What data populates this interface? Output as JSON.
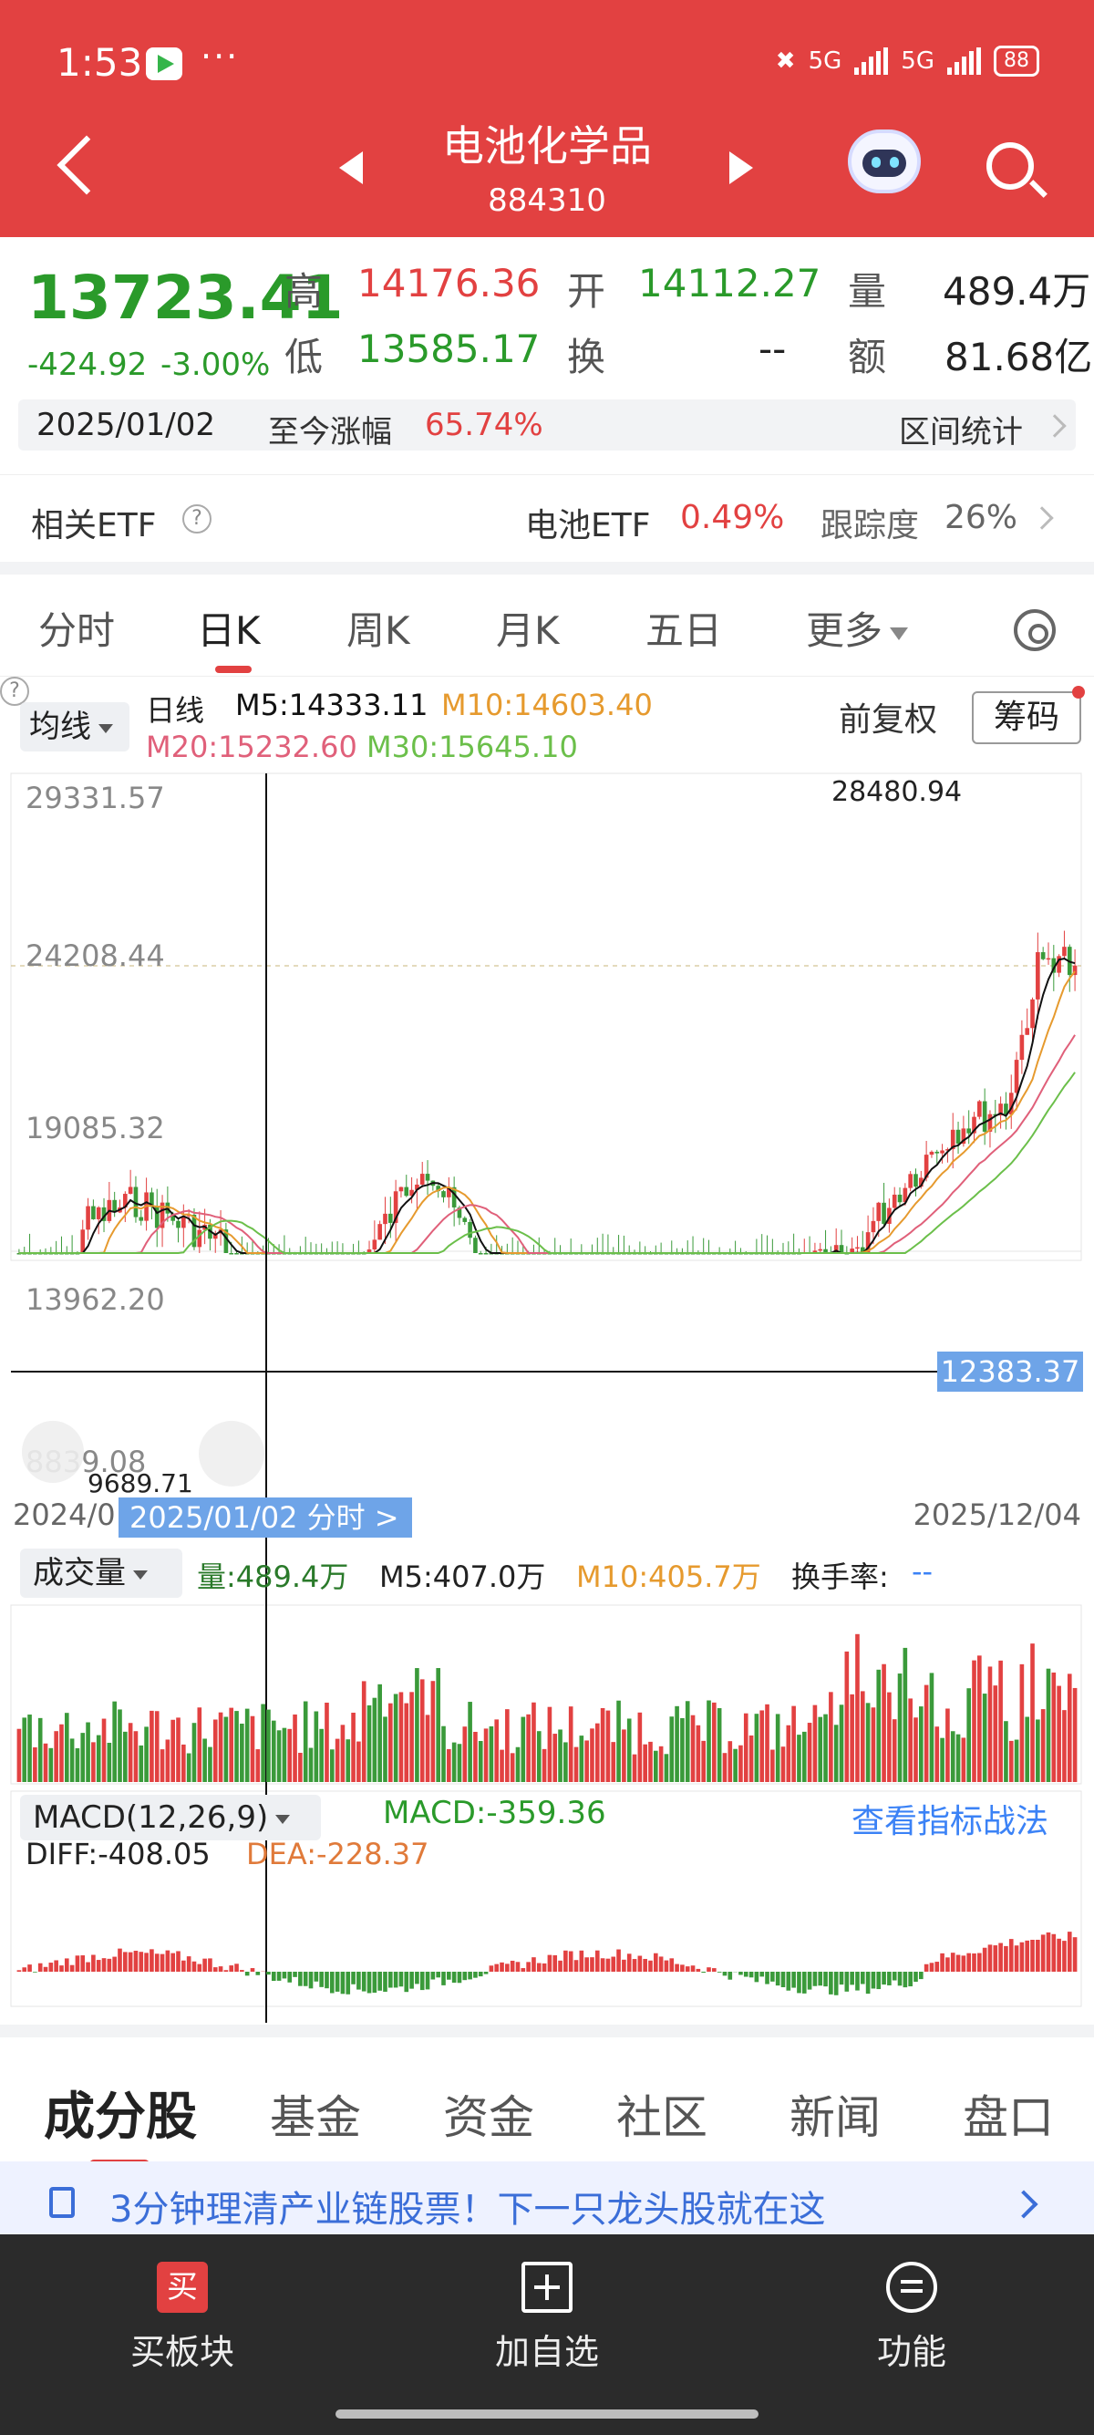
{
  "status_bar": {
    "time": "1:53",
    "more": "···",
    "signal1": "5G",
    "signal2": "5G",
    "battery": "88"
  },
  "nav": {
    "title": "电池化学品",
    "code": "884310"
  },
  "quote": {
    "price": "13723.41",
    "change": "-424.92",
    "change_pct": "-3.00%",
    "high_label": "高",
    "high": "14176.36",
    "open_label": "开",
    "open": "14112.27",
    "vol_label": "量",
    "vol": "489.4万",
    "low_label": "低",
    "low": "13585.17",
    "turnover_label": "换",
    "turnover": "--",
    "amount_label": "额",
    "amount": "81.68亿",
    "date": "2025/01/02",
    "since_label": "至今涨幅",
    "since_value": "65.74%",
    "range_stats": "区间统计"
  },
  "etf": {
    "label": "相关ETF",
    "help": "?",
    "name": "电池ETF",
    "value": "0.49%",
    "track_label": "跟踪度",
    "track_value": "26%"
  },
  "tabs": [
    "分时",
    "日K",
    "周K",
    "月K",
    "五日",
    "更多"
  ],
  "chart": {
    "ma_selector": "均线",
    "period": "日线",
    "ma5": "M5:14333.11",
    "ma10": "M10:14603.40",
    "ma20": "M20:15232.60",
    "ma30": "M30:15645.10",
    "adjust": "前复权",
    "chip": "筹码",
    "y_labels": [
      "29331.57",
      "24208.44",
      "19085.32",
      "13962.20",
      "8839.08"
    ],
    "max_label": "28480.94",
    "min_label": "9689.71",
    "x_start": "2024/0",
    "x_end": "2025/12/04",
    "cursor_tag": "2025/01/02  分时  >",
    "cursor_price": "12383.37",
    "vol_selector": "成交量",
    "vol_value": "量:489.4万",
    "vol_m5": "M5:407.0万",
    "vol_m10": "M10:405.7万",
    "vol_turn": "换手率:",
    "vol_turn_val": "--",
    "macd_selector": "MACD(12,26,9)",
    "macd_help": "?",
    "macd_value": "MACD:-359.36",
    "macd_link": "查看指标战法",
    "diff": "DIFF:-408.05",
    "dea": "DEA:-228.37",
    "colors": {
      "up": "#e24141",
      "down": "#3a9a3a",
      "ma5": "#111111",
      "ma10": "#e69a2e",
      "ma20": "#e0607a",
      "ma30": "#6bbf4a"
    }
  },
  "bottom_tabs": [
    "成分股",
    "基金",
    "资金",
    "社区",
    "新闻",
    "盘口"
  ],
  "banner": {
    "text": "3分钟理清产业链股票！下一只龙头股就在这"
  },
  "bottom_bar": {
    "buy_icon": "买",
    "buy": "买板块",
    "add": "加自选",
    "func": "功能"
  }
}
